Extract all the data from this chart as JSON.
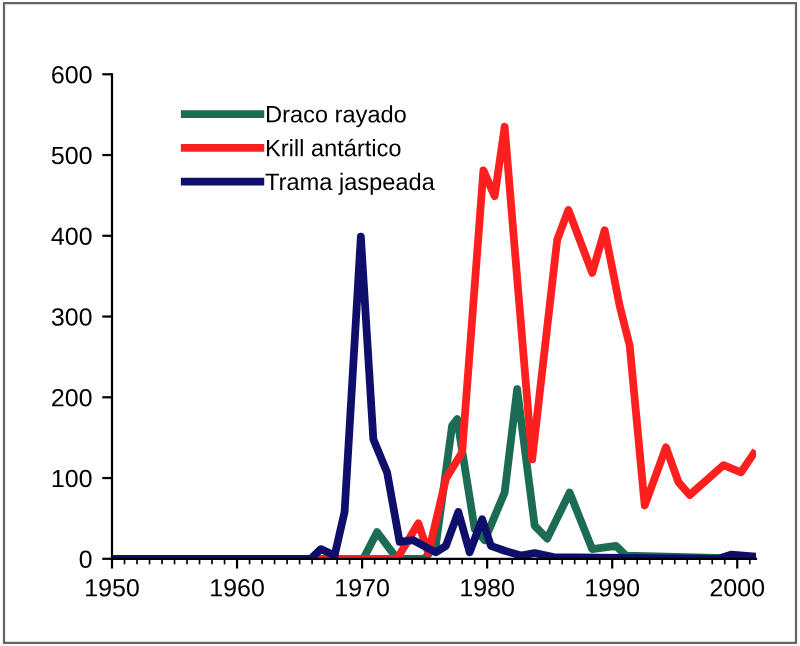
{
  "chart_data": {
    "type": "line",
    "xlim": [
      1950,
      2001.5
    ],
    "xticks": [
      1950,
      1960,
      1970,
      1980,
      1990,
      2000
    ],
    "ylim": [
      0,
      600
    ],
    "yticks": [
      0,
      100,
      200,
      300,
      400,
      500,
      600
    ],
    "grid": false,
    "legend": "top left",
    "marker": "none",
    "line_style": "solid",
    "series": [
      {
        "name": "Draco rayado",
        "color": "#1b6b55",
        "x": [
          1950,
          1970.1,
          1971.2,
          1972.8,
          1975.0,
          1975.9,
          1977.2,
          1977.6,
          1979.0,
          1979.8,
          1981.4,
          1982.4,
          1983.8,
          1984.8,
          1986.6,
          1988.4,
          1990.3,
          1991.1,
          2001.3
        ],
        "values": [
          0,
          0,
          33,
          0,
          0,
          17,
          165,
          173,
          37,
          23,
          82,
          210,
          41,
          25,
          82,
          12,
          16,
          4,
          0
        ]
      },
      {
        "name": "Krill antártico",
        "color": "#ff1f1f",
        "x": [
          1950,
          1972.8,
          1974.5,
          1975.3,
          1976.7,
          1978.0,
          1979.7,
          1980.6,
          1981.4,
          1983.6,
          1985.6,
          1986.5,
          1988.4,
          1989.4,
          1990.6,
          1991.4,
          1992.6,
          1994.3,
          1995.3,
          1996.2,
          1998.9,
          2000.3,
          2001.3
        ],
        "values": [
          0,
          0,
          44,
          7,
          99,
          132,
          481,
          449,
          535,
          123,
          395,
          432,
          354,
          407,
          313,
          264,
          66,
          138,
          95,
          79,
          116,
          107,
          130
        ]
      },
      {
        "name": "Trama jaspeada",
        "color": "#0f0f6b",
        "x": [
          1950,
          1965.9,
          1966.7,
          1967.8,
          1968.6,
          1969.9,
          1970.9,
          1972.0,
          1973.0,
          1974.1,
          1975.4,
          1975.9,
          1976.7,
          1977.7,
          1978.6,
          1979.6,
          1980.3,
          1981.4,
          1982.7,
          1983.8,
          1985.3,
          1998.5,
          1999.5,
          2001.3
        ],
        "values": [
          0,
          0,
          12,
          4,
          58,
          399,
          148,
          107,
          21,
          23,
          12,
          8,
          16,
          58,
          8,
          49,
          16,
          10,
          4,
          7,
          2,
          0,
          5,
          3
        ]
      }
    ]
  }
}
